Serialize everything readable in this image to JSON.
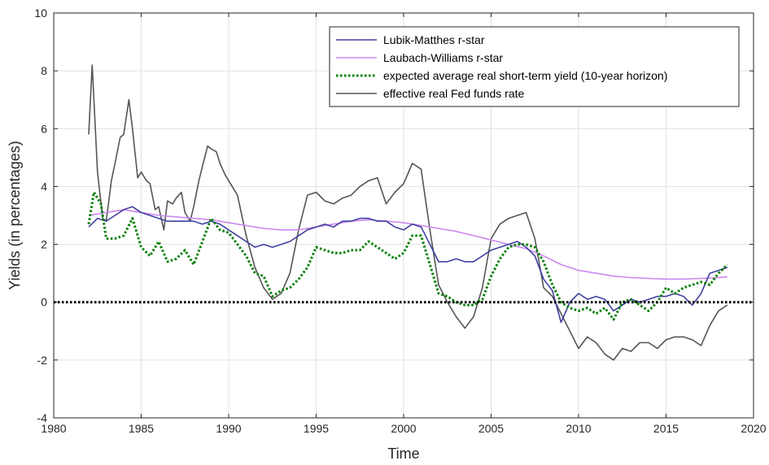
{
  "chart_data": {
    "type": "line",
    "title": "",
    "xlabel": "Time",
    "ylabel": "Yields (in percentages)",
    "xlim": [
      1980,
      2020
    ],
    "ylim": [
      -4,
      10
    ],
    "xticks": [
      "1980",
      "1985",
      "1990",
      "1995",
      "2000",
      "2005",
      "2010",
      "2015",
      "2020"
    ],
    "yticks": [
      "-4",
      "-2",
      "0",
      "2",
      "4",
      "6",
      "8",
      "10"
    ],
    "grid": true,
    "legend_position": "top-right",
    "reference_line": {
      "y": 0,
      "style": "dotted",
      "color": "#000000"
    },
    "series": [
      {
        "name": "Lubik-Matthes r-star",
        "color": "#4040a0",
        "style": "solid",
        "x": [
          1982.0,
          1982.5,
          1983.0,
          1983.5,
          1984.0,
          1984.5,
          1985.0,
          1985.5,
          1986.0,
          1986.5,
          1987.0,
          1987.5,
          1988.0,
          1988.5,
          1989.0,
          1989.5,
          1990.0,
          1990.5,
          1991.0,
          1991.5,
          1992.0,
          1992.5,
          1993.0,
          1993.5,
          1994.0,
          1994.5,
          1995.0,
          1995.5,
          1996.0,
          1996.5,
          1997.0,
          1997.5,
          1998.0,
          1998.5,
          1999.0,
          1999.5,
          2000.0,
          2000.5,
          2001.0,
          2001.5,
          2002.0,
          2002.5,
          2003.0,
          2003.5,
          2004.0,
          2004.5,
          2005.0,
          2005.5,
          2006.0,
          2006.5,
          2007.0,
          2007.5,
          2008.0,
          2008.5,
          2009.0,
          2009.5,
          2010.0,
          2010.5,
          2011.0,
          2011.5,
          2012.0,
          2012.5,
          2013.0,
          2013.5,
          2014.0,
          2014.5,
          2015.0,
          2015.5,
          2016.0,
          2016.5,
          2017.0,
          2017.5,
          2018.0,
          2018.5
        ],
        "y": [
          2.6,
          2.9,
          2.8,
          3.0,
          3.2,
          3.3,
          3.1,
          3.0,
          2.9,
          2.8,
          2.8,
          2.8,
          2.8,
          2.7,
          2.8,
          2.7,
          2.5,
          2.3,
          2.1,
          1.9,
          2.0,
          1.9,
          2.0,
          2.1,
          2.3,
          2.5,
          2.6,
          2.7,
          2.6,
          2.8,
          2.8,
          2.9,
          2.9,
          2.8,
          2.8,
          2.6,
          2.5,
          2.7,
          2.6,
          2.0,
          1.4,
          1.4,
          1.5,
          1.4,
          1.4,
          1.6,
          1.8,
          1.9,
          2.0,
          2.1,
          1.9,
          1.6,
          0.8,
          0.4,
          -0.7,
          0.0,
          0.3,
          0.1,
          0.2,
          0.1,
          -0.3,
          -0.1,
          0.1,
          0.0,
          0.1,
          0.2,
          0.2,
          0.3,
          0.2,
          -0.1,
          0.3,
          1.0,
          1.1,
          1.2
        ]
      },
      {
        "name": "Laubach-Williams r-star",
        "color": "#cc88ee",
        "style": "solid",
        "x": [
          1982.0,
          1983.0,
          1984.0,
          1985.0,
          1986.0,
          1987.0,
          1988.0,
          1989.0,
          1990.0,
          1991.0,
          1992.0,
          1993.0,
          1994.0,
          1995.0,
          1996.0,
          1997.0,
          1998.0,
          1999.0,
          2000.0,
          2001.0,
          2002.0,
          2003.0,
          2004.0,
          2005.0,
          2006.0,
          2007.0,
          2008.0,
          2009.0,
          2010.0,
          2011.0,
          2012.0,
          2013.0,
          2014.0,
          2015.0,
          2016.0,
          2017.0,
          2018.0,
          2018.5
        ],
        "y": [
          3.0,
          3.1,
          3.2,
          3.1,
          3.0,
          2.95,
          2.9,
          2.85,
          2.75,
          2.65,
          2.55,
          2.5,
          2.5,
          2.6,
          2.7,
          2.8,
          2.85,
          2.8,
          2.75,
          2.65,
          2.55,
          2.45,
          2.3,
          2.15,
          2.0,
          1.85,
          1.6,
          1.3,
          1.1,
          1.0,
          0.9,
          0.85,
          0.82,
          0.8,
          0.8,
          0.82,
          0.85,
          0.88
        ]
      },
      {
        "name": "expected average real short-term yield (10-year horizon)",
        "color": "#008000",
        "style": "dotted",
        "x": [
          1982.0,
          1982.3,
          1982.7,
          1983.0,
          1983.5,
          1984.0,
          1984.5,
          1985.0,
          1985.5,
          1986.0,
          1986.5,
          1987.0,
          1987.5,
          1988.0,
          1988.5,
          1989.0,
          1989.5,
          1990.0,
          1990.5,
          1991.0,
          1991.5,
          1992.0,
          1992.5,
          1993.0,
          1993.5,
          1994.0,
          1994.5,
          1995.0,
          1995.5,
          1996.0,
          1996.5,
          1997.0,
          1997.5,
          1998.0,
          1998.5,
          1999.0,
          1999.5,
          2000.0,
          2000.5,
          2001.0,
          2001.5,
          2002.0,
          2002.5,
          2003.0,
          2003.5,
          2004.0,
          2004.5,
          2005.0,
          2005.5,
          2006.0,
          2006.5,
          2007.0,
          2007.5,
          2008.0,
          2008.5,
          2009.0,
          2009.5,
          2010.0,
          2010.5,
          2011.0,
          2011.5,
          2012.0,
          2012.5,
          2013.0,
          2013.5,
          2014.0,
          2014.5,
          2015.0,
          2015.5,
          2016.0,
          2016.5,
          2017.0,
          2017.5,
          2018.0,
          2018.5
        ],
        "y": [
          2.7,
          3.8,
          3.4,
          2.2,
          2.2,
          2.3,
          2.9,
          1.9,
          1.6,
          2.1,
          1.4,
          1.5,
          1.8,
          1.3,
          2.1,
          2.9,
          2.5,
          2.4,
          2.0,
          1.6,
          1.0,
          0.9,
          0.2,
          0.4,
          0.5,
          0.8,
          1.2,
          1.9,
          1.8,
          1.7,
          1.7,
          1.8,
          1.8,
          2.1,
          1.9,
          1.7,
          1.5,
          1.7,
          2.3,
          2.3,
          1.3,
          0.3,
          0.2,
          0.0,
          -0.1,
          -0.1,
          0.1,
          0.9,
          1.5,
          1.9,
          2.0,
          2.0,
          1.9,
          1.4,
          0.6,
          0.0,
          -0.2,
          -0.3,
          -0.2,
          -0.4,
          -0.2,
          -0.6,
          0.0,
          0.1,
          -0.1,
          -0.3,
          0.0,
          0.5,
          0.3,
          0.5,
          0.6,
          0.7,
          0.6,
          1.0,
          1.3
        ]
      },
      {
        "name": "effective real Fed funds rate",
        "color": "#555555",
        "style": "solid",
        "x": [
          1982.0,
          1982.2,
          1982.5,
          1982.8,
          1983.0,
          1983.3,
          1983.5,
          1983.8,
          1984.0,
          1984.3,
          1984.5,
          1984.8,
          1985.0,
          1985.3,
          1985.5,
          1985.8,
          1986.0,
          1986.3,
          1986.5,
          1986.8,
          1987.0,
          1987.3,
          1987.5,
          1987.8,
          1988.0,
          1988.3,
          1988.5,
          1988.8,
          1989.0,
          1989.3,
          1989.5,
          1989.8,
          1990.0,
          1990.5,
          1991.0,
          1991.5,
          1992.0,
          1992.5,
          1993.0,
          1993.5,
          1994.0,
          1994.5,
          1995.0,
          1995.5,
          1996.0,
          1996.5,
          1997.0,
          1997.5,
          1998.0,
          1998.5,
          1999.0,
          1999.5,
          2000.0,
          2000.5,
          2001.0,
          2001.5,
          2002.0,
          2002.5,
          2003.0,
          2003.5,
          2004.0,
          2004.5,
          2005.0,
          2005.5,
          2006.0,
          2006.5,
          2007.0,
          2007.5,
          2008.0,
          2008.5,
          2009.0,
          2009.5,
          2010.0,
          2010.5,
          2011.0,
          2011.5,
          2012.0,
          2012.5,
          2013.0,
          2013.5,
          2014.0,
          2014.5,
          2015.0,
          2015.5,
          2016.0,
          2016.5,
          2017.0,
          2017.5,
          2018.0,
          2018.5
        ],
        "y": [
          5.8,
          8.2,
          4.5,
          2.9,
          2.8,
          4.2,
          4.8,
          5.7,
          5.8,
          7.0,
          6.0,
          4.3,
          4.5,
          4.2,
          4.1,
          3.2,
          3.3,
          2.5,
          3.5,
          3.4,
          3.6,
          3.8,
          3.1,
          2.8,
          3.3,
          4.2,
          4.7,
          5.4,
          5.3,
          5.2,
          4.8,
          4.4,
          4.2,
          3.7,
          2.3,
          1.2,
          0.5,
          0.1,
          0.3,
          1.0,
          2.5,
          3.7,
          3.8,
          3.5,
          3.4,
          3.6,
          3.7,
          4.0,
          4.2,
          4.3,
          3.4,
          3.8,
          4.1,
          4.8,
          4.6,
          2.5,
          0.6,
          0.0,
          -0.5,
          -0.9,
          -0.5,
          0.5,
          2.2,
          2.7,
          2.9,
          3.0,
          3.1,
          2.2,
          0.5,
          0.2,
          -0.4,
          -1.0,
          -1.6,
          -1.2,
          -1.4,
          -1.8,
          -2.0,
          -1.6,
          -1.7,
          -1.4,
          -1.4,
          -1.6,
          -1.3,
          -1.2,
          -1.2,
          -1.3,
          -1.5,
          -0.8,
          -0.3,
          -0.1
        ]
      }
    ]
  }
}
